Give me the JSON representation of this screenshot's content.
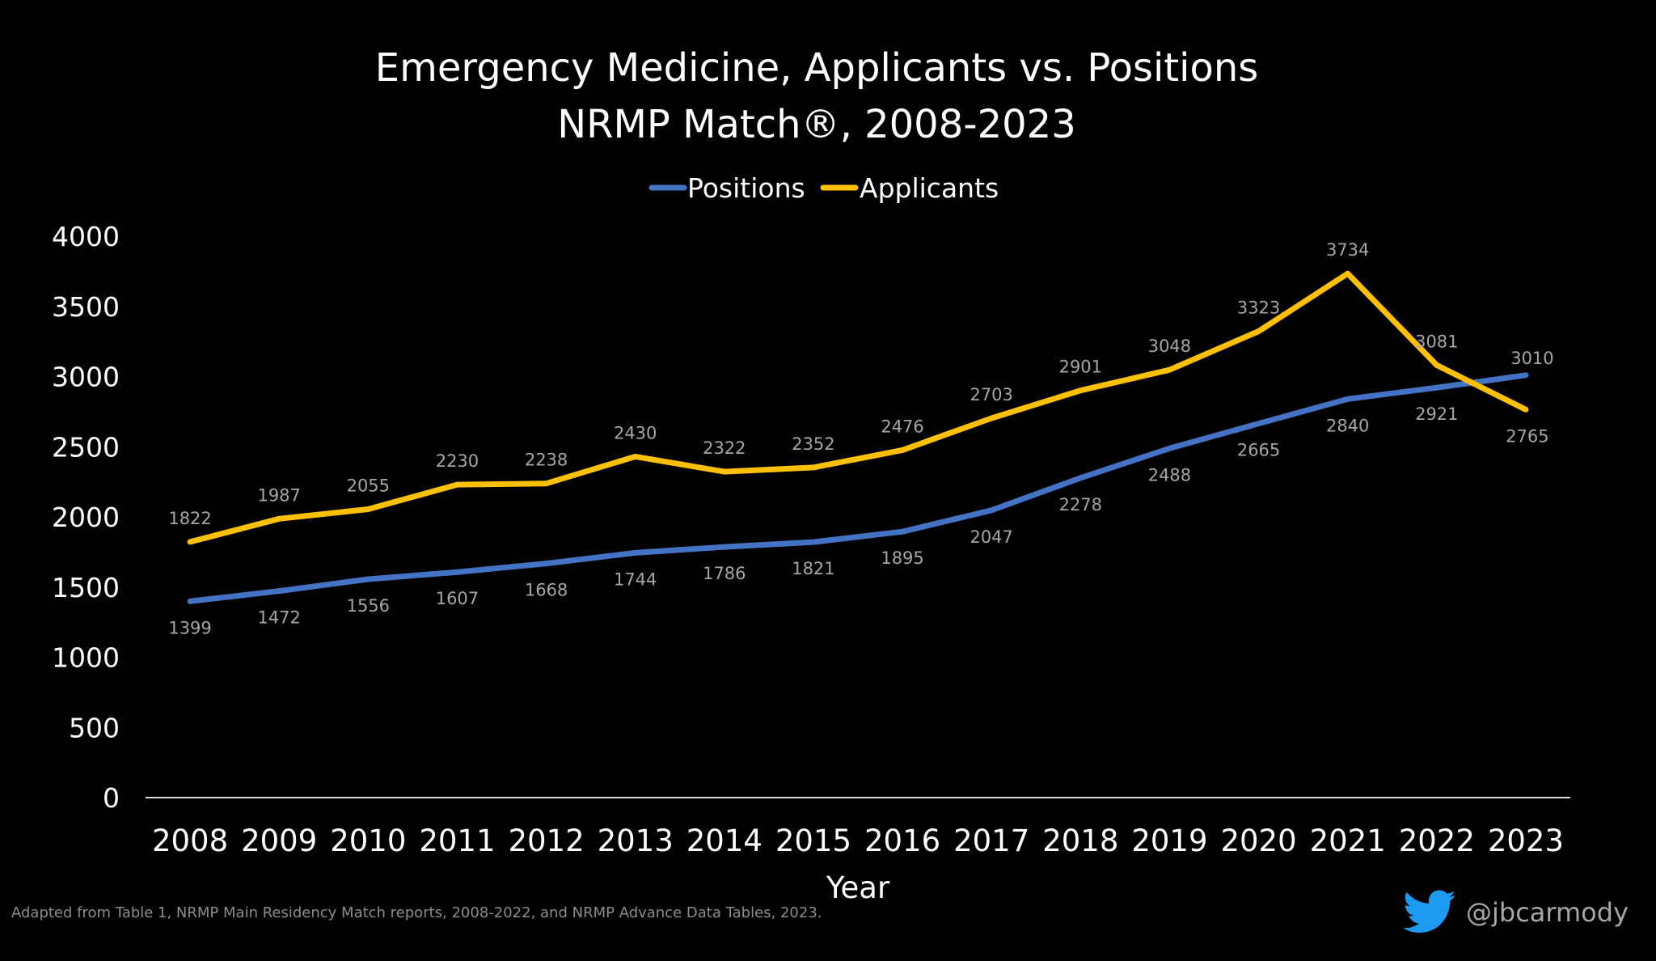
{
  "chart_data": {
    "type": "line",
    "title": [
      "Emergency Medicine, Applicants vs. Positions",
      "NRMP Match®, 2008-2023"
    ],
    "xlabel": "Year",
    "ylabel": "",
    "ylim": [
      0,
      4000
    ],
    "yticks": [
      "0",
      "500",
      "1000",
      "1500",
      "2000",
      "2500",
      "3000",
      "3500",
      "4000"
    ],
    "categories": [
      "2008",
      "2009",
      "2010",
      "2011",
      "2012",
      "2013",
      "2014",
      "2015",
      "2016",
      "2017",
      "2018",
      "2019",
      "2020",
      "2021",
      "2022",
      "2023"
    ],
    "legend_position": "top-center",
    "grid": false,
    "series": [
      {
        "name": "Positions",
        "color": "#4472c4",
        "values": [
          1399,
          1472,
          1556,
          1607,
          1668,
          1744,
          1786,
          1821,
          1895,
          2047,
          2278,
          2488,
          2665,
          2840,
          2921,
          3010
        ]
      },
      {
        "name": "Applicants",
        "color": "#ffc000",
        "values": [
          1822,
          1987,
          2055,
          2230,
          2238,
          2430,
          2322,
          2352,
          2476,
          2703,
          2901,
          3048,
          3323,
          3734,
          3081,
          2765
        ]
      }
    ]
  },
  "footer": {
    "source": "Adapted from Table 1, NRMP Main Residency Match reports, 2008-2022, and NRMP Advance Data Tables, 2023.",
    "handle": "@jbcarmody",
    "icon": "twitter-bird-icon",
    "icon_color": "#1d9bf0"
  }
}
